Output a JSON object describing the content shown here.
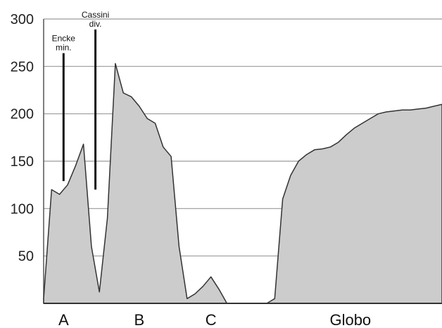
{
  "chart_data": {
    "type": "area",
    "title": "",
    "xlabel": "",
    "ylabel": "",
    "ylim": [
      0,
      300
    ],
    "yticks": [
      "300",
      "250",
      "200",
      "150",
      "100",
      "50"
    ],
    "grid": true,
    "categories": [
      "A",
      "B",
      "C",
      "Globo"
    ],
    "series": [
      {
        "x": [
          0,
          2,
          4,
          6,
          8,
          10,
          12,
          14,
          16,
          18,
          20,
          22,
          24,
          26,
          28,
          30,
          32,
          34,
          36,
          38,
          40,
          42,
          44,
          46,
          48,
          50,
          52,
          54,
          56,
          58,
          60,
          62,
          64,
          66,
          68,
          70,
          72,
          74,
          76,
          78,
          80,
          82,
          84,
          86,
          88,
          90,
          92,
          94,
          96,
          98,
          100
        ],
        "values": [
          5,
          120,
          115,
          125,
          145,
          168,
          60,
          12,
          90,
          253,
          222,
          218,
          208,
          195,
          190,
          165,
          155,
          60,
          5,
          10,
          18,
          28,
          15,
          0,
          0,
          0,
          0,
          0,
          0,
          5,
          110,
          135,
          150,
          157,
          162,
          163,
          165,
          170,
          178,
          185,
          190,
          195,
          200,
          202,
          203,
          204,
          204,
          205,
          206,
          208,
          210
        ],
        "color": "#cccccc"
      }
    ],
    "annotations": [
      {
        "label_lines": [
          "Encke",
          "min."
        ],
        "x": 5.0,
        "y_top": 264,
        "y_bottom": 129
      },
      {
        "label_lines": [
          "Cassini",
          "div."
        ],
        "x": 13.0,
        "y_top": 289,
        "y_bottom": 120
      }
    ]
  }
}
